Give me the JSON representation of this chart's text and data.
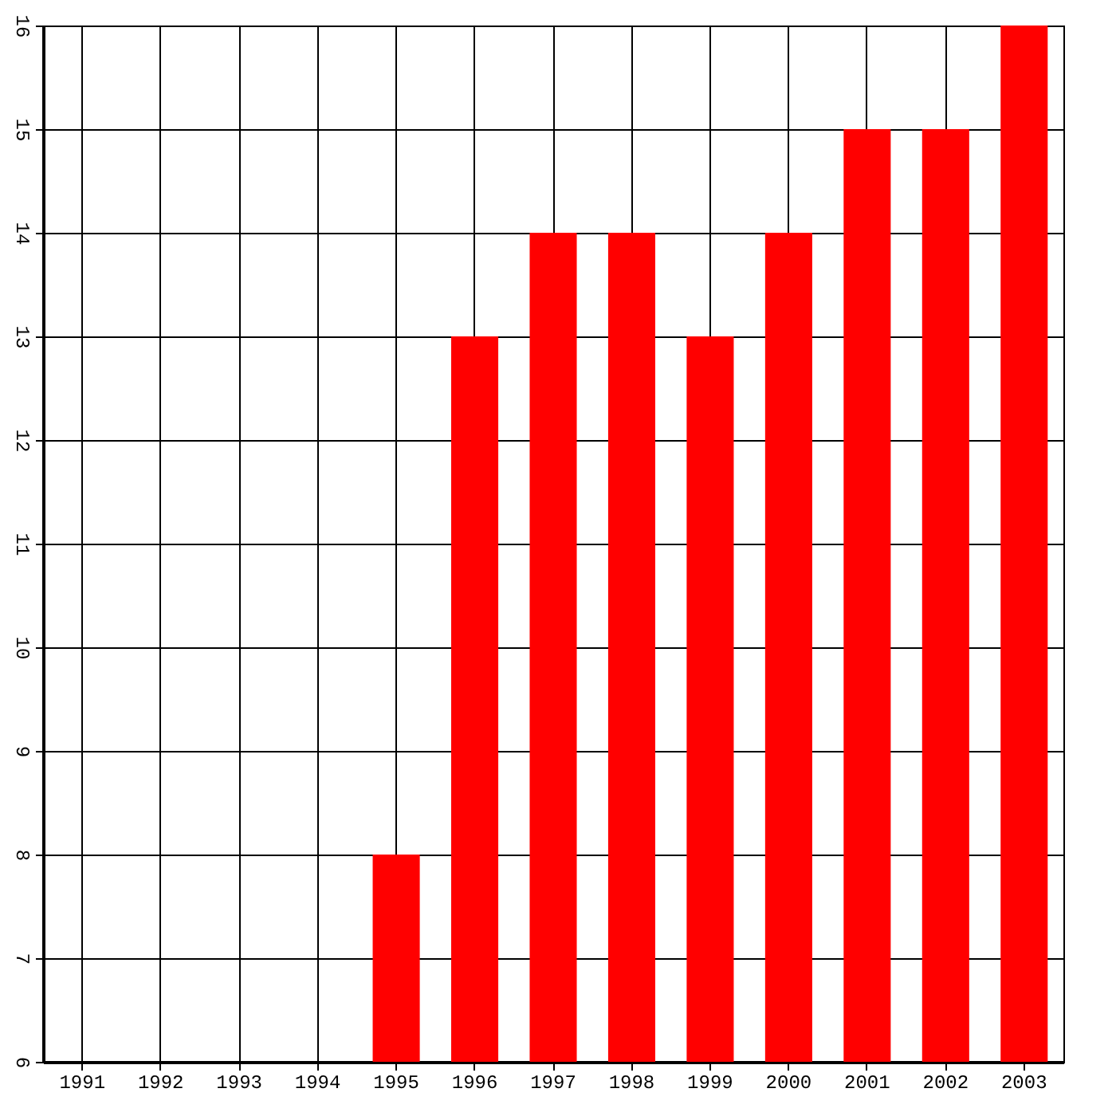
{
  "chart_data": {
    "type": "bar",
    "categories": [
      "1991",
      "1992",
      "1993",
      "1994",
      "1995",
      "1996",
      "1997",
      "1998",
      "1999",
      "2000",
      "2001",
      "2002",
      "2003"
    ],
    "values": [
      6,
      6,
      6,
      6,
      8,
      13,
      14,
      14,
      13,
      14,
      15,
      15,
      16
    ],
    "color": "#ff0000",
    "ylim": [
      6,
      16
    ],
    "yticks": [
      6,
      7,
      8,
      9,
      10,
      11,
      12,
      13,
      14,
      15,
      16
    ],
    "grid": true
  }
}
